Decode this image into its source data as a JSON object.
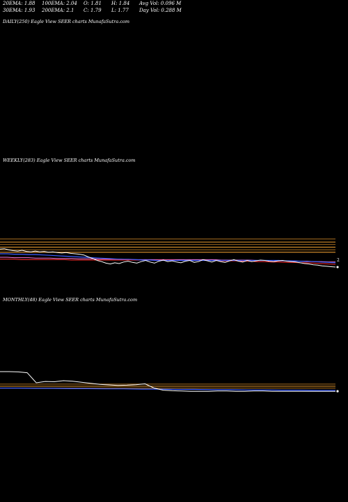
{
  "header": {
    "row1": [
      {
        "key": "ema20",
        "text": "20EMA: 1.88"
      },
      {
        "key": "ema100",
        "text": "100EMA: 2.04"
      },
      {
        "key": "open",
        "text": "O: 1.81"
      },
      {
        "key": "high",
        "text": "H: 1.84"
      },
      {
        "key": "avgvol",
        "text": "Avg Vol: 0.096  M"
      }
    ],
    "row2": [
      {
        "key": "ema30",
        "text": "30EMA: 1.93"
      },
      {
        "key": "ema200",
        "text": "200EMA: 2.1"
      },
      {
        "key": "close",
        "text": "C: 1.79"
      },
      {
        "key": "low",
        "text": "L: 1.77"
      },
      {
        "key": "dayvol",
        "text": "Day Vol: 0.288  M"
      }
    ]
  },
  "panels": {
    "daily": {
      "label": "DAILY(250) Eagle   View  SEER charts MunafaSutra.com"
    },
    "weekly": {
      "label": "WEEKLY(283) Eagle   View  SEER charts MunafaSutra.com",
      "axis_label": "2"
    },
    "monthly": {
      "label": "MONTHLY(48) Eagle   View  SEER charts MunafaSutra.com"
    }
  },
  "colors": {
    "background": "#000000",
    "price": "#ffffff",
    "ema_blue": "#3a5cff",
    "ema_red": "#ff2a2a",
    "ema_pink": "#ff7ad9",
    "band_brown": "#8a5a1a",
    "band_orange": "#d08a2a"
  },
  "chart_data": [
    {
      "type": "line",
      "name": "weekly",
      "ylim": [
        0,
        1
      ],
      "price": [
        0.62,
        0.63,
        0.6,
        0.58,
        0.57,
        0.59,
        0.56,
        0.55,
        0.57,
        0.55,
        0.56,
        0.54,
        0.55,
        0.53,
        0.52,
        0.53,
        0.51,
        0.5,
        0.49,
        0.47,
        0.42,
        0.38,
        0.33,
        0.3,
        0.26,
        0.24,
        0.27,
        0.25,
        0.29,
        0.31,
        0.28,
        0.26,
        0.3,
        0.33,
        0.29,
        0.26,
        0.31,
        0.34,
        0.3,
        0.32,
        0.29,
        0.27,
        0.31,
        0.33,
        0.28,
        0.3,
        0.35,
        0.32,
        0.29,
        0.33,
        0.3,
        0.28,
        0.32,
        0.35,
        0.31,
        0.29,
        0.33,
        0.3,
        0.32,
        0.34,
        0.33,
        0.31,
        0.3,
        0.32,
        0.33,
        0.31,
        0.3,
        0.29,
        0.27,
        0.25,
        0.24,
        0.22,
        0.21,
        0.19,
        0.18,
        0.17,
        0.16
      ],
      "ema_blue": [
        0.5,
        0.5,
        0.49,
        0.49,
        0.48,
        0.48,
        0.47,
        0.46,
        0.45,
        0.44,
        0.43,
        0.42,
        0.41,
        0.4,
        0.39,
        0.38,
        0.37,
        0.36,
        0.36,
        0.35,
        0.34,
        0.34,
        0.33,
        0.33,
        0.33,
        0.33,
        0.33,
        0.33,
        0.33,
        0.33,
        0.33,
        0.33,
        0.33,
        0.33,
        0.33,
        0.33,
        0.33,
        0.33,
        0.33,
        0.33,
        0.32,
        0.32,
        0.31,
        0.3,
        0.3,
        0.29,
        0.28,
        0.27
      ],
      "ema_red": [
        0.36,
        0.36,
        0.36,
        0.35,
        0.35,
        0.35,
        0.35,
        0.35,
        0.35,
        0.35,
        0.34,
        0.34,
        0.34,
        0.34,
        0.34,
        0.34,
        0.34,
        0.34,
        0.34,
        0.34,
        0.34,
        0.34,
        0.34,
        0.34,
        0.34,
        0.33,
        0.33,
        0.33,
        0.33,
        0.33,
        0.33,
        0.32,
        0.32,
        0.32,
        0.31,
        0.31,
        0.3,
        0.3,
        0.29,
        0.29,
        0.28,
        0.28,
        0.27,
        0.27,
        0.26,
        0.25,
        0.24,
        0.23
      ],
      "ema_pink": [
        0.41,
        0.41,
        0.4,
        0.4,
        0.4,
        0.39,
        0.39,
        0.39,
        0.38,
        0.38,
        0.38,
        0.37,
        0.37,
        0.37,
        0.36,
        0.36,
        0.36,
        0.36,
        0.35,
        0.35,
        0.35,
        0.35,
        0.35,
        0.35,
        0.35,
        0.35,
        0.35,
        0.35,
        0.35,
        0.35,
        0.35,
        0.34,
        0.34,
        0.34,
        0.34,
        0.34,
        0.33,
        0.33,
        0.33,
        0.32,
        0.32,
        0.32,
        0.31,
        0.31,
        0.3,
        0.3,
        0.29,
        0.29
      ],
      "bands": [
        0.88,
        0.8,
        0.74,
        0.67,
        0.6,
        0.54
      ]
    },
    {
      "type": "line",
      "name": "monthly",
      "ylim": [
        0,
        1
      ],
      "price": [
        0.92,
        0.92,
        0.91,
        0.88,
        0.5,
        0.55,
        0.54,
        0.58,
        0.56,
        0.52,
        0.48,
        0.44,
        0.42,
        0.4,
        0.41,
        0.43,
        0.46,
        0.3,
        0.22,
        0.2,
        0.19,
        0.18,
        0.18,
        0.18,
        0.19,
        0.19,
        0.18,
        0.18,
        0.19,
        0.19,
        0.18,
        0.18,
        0.18,
        0.18,
        0.18,
        0.18,
        0.18,
        0.18
      ],
      "ema_blue": [
        0.3,
        0.3,
        0.29,
        0.29,
        0.28,
        0.28,
        0.27,
        0.27,
        0.26,
        0.26,
        0.25,
        0.25,
        0.24,
        0.24,
        0.23,
        0.23,
        0.22,
        0.22,
        0.21,
        0.21
      ],
      "bands": [
        0.45,
        0.37,
        0.3
      ]
    }
  ]
}
